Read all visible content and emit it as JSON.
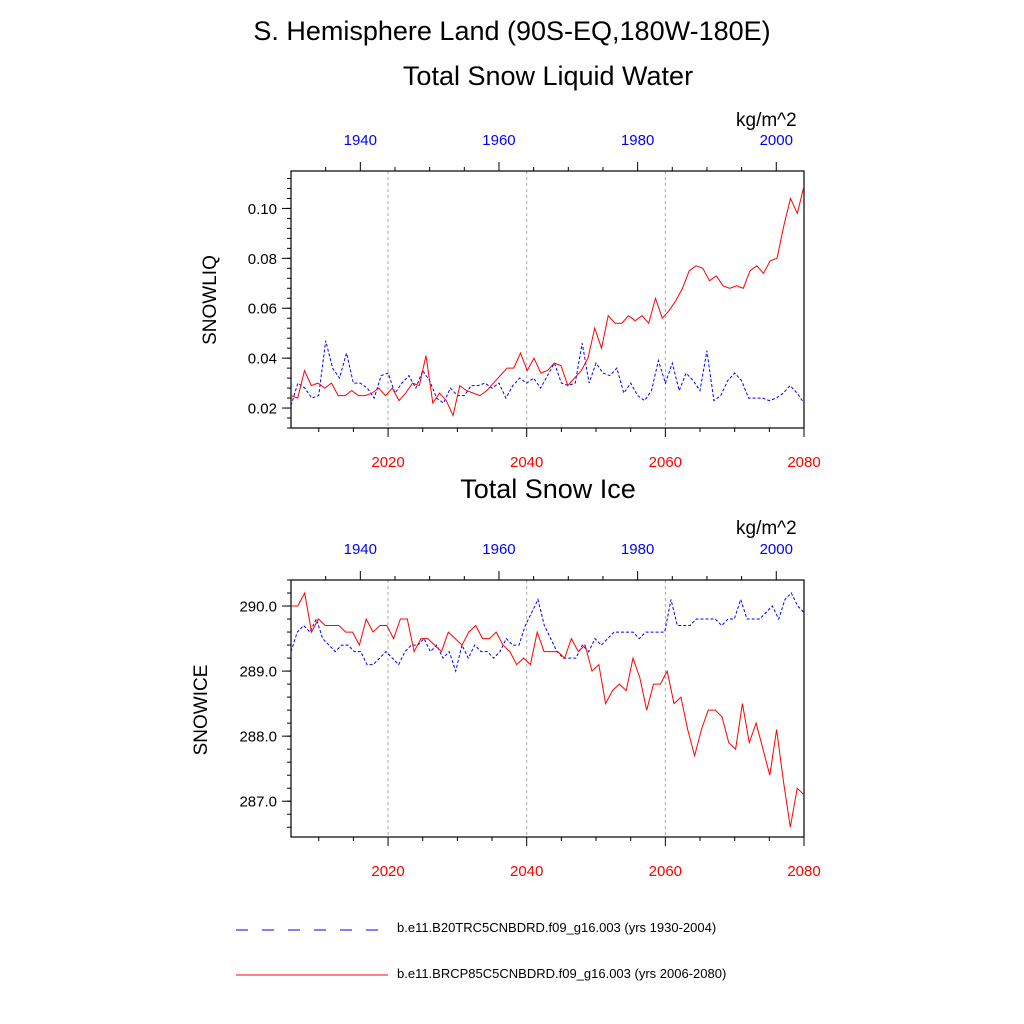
{
  "header": {
    "title": "S. Hemisphere Land (90S-EQ,180W-180E)"
  },
  "legend": [
    {
      "label": "b.e11.B20TRC5CNBDRD.f09_g16.003 (yrs 1930-2004)",
      "color": "#0000ff",
      "style": "dashed"
    },
    {
      "label": "b.e11.BRCP85C5CNBDRD.f09_g16.003 (yrs 2006-2080)",
      "color": "#ff0000",
      "style": "solid"
    }
  ],
  "chart_data": [
    {
      "type": "line",
      "title": "Total Snow Liquid Water",
      "units": "kg/m^2",
      "ylabel": "SNOWLIQ",
      "ylim": [
        0.012,
        0.115
      ],
      "yticks": [
        0.02,
        0.04,
        0.06,
        0.08,
        0.1
      ],
      "ytick_labels": [
        "0.02",
        "0.04",
        "0.06",
        "0.08",
        "0.10"
      ],
      "xlim": [
        2006,
        2080
      ],
      "x_bottom_ticks": [
        "2020",
        "2040",
        "2060",
        "2080"
      ],
      "x_top_ticks": [
        "1940",
        "1960",
        "1980",
        "2000"
      ],
      "x_top_offset": -76,
      "series": [
        {
          "name": "b.e11.B20TRC5CNBDRD.f09_g16.003 (yrs 1930-2004)",
          "color": "#0000ff",
          "x_start": 2006,
          "values": [
            0.021,
            0.03,
            0.028,
            0.024,
            0.025,
            0.047,
            0.036,
            0.032,
            0.042,
            0.03,
            0.03,
            0.028,
            0.024,
            0.033,
            0.034,
            0.026,
            0.03,
            0.033,
            0.028,
            0.035,
            0.031,
            0.024,
            0.022,
            0.028,
            0.025,
            0.025,
            0.029,
            0.029,
            0.03,
            0.028,
            0.03,
            0.024,
            0.029,
            0.032,
            0.03,
            0.032,
            0.028,
            0.033,
            0.038,
            0.03,
            0.029,
            0.03,
            0.046,
            0.03,
            0.038,
            0.034,
            0.033,
            0.036,
            0.026,
            0.03,
            0.025,
            0.023,
            0.027,
            0.039,
            0.03,
            0.038,
            0.027,
            0.034,
            0.031,
            0.027,
            0.043,
            0.023,
            0.025,
            0.031,
            0.034,
            0.031,
            0.024,
            0.024,
            0.024,
            0.023,
            0.024,
            0.026,
            0.029,
            0.026,
            0.022
          ]
        },
        {
          "name": "b.e11.BRCP85C5CNBDRD.f09_g16.003 (yrs 2006-2080)",
          "color": "#ff0000",
          "x_start": 2006,
          "values": [
            0.025,
            0.024,
            0.035,
            0.029,
            0.03,
            0.028,
            0.03,
            0.025,
            0.025,
            0.027,
            0.025,
            0.025,
            0.026,
            0.028,
            0.025,
            0.028,
            0.023,
            0.026,
            0.03,
            0.029,
            0.041,
            0.022,
            0.026,
            0.023,
            0.017,
            0.029,
            0.027,
            0.026,
            0.025,
            0.027,
            0.03,
            0.033,
            0.036,
            0.036,
            0.042,
            0.035,
            0.04,
            0.034,
            0.035,
            0.038,
            0.037,
            0.029,
            0.032,
            0.035,
            0.04,
            0.052,
            0.044,
            0.057,
            0.054,
            0.054,
            0.057,
            0.055,
            0.057,
            0.054,
            0.064,
            0.056,
            0.059,
            0.063,
            0.068,
            0.075,
            0.077,
            0.076,
            0.071,
            0.073,
            0.069,
            0.068,
            0.069,
            0.068,
            0.075,
            0.077,
            0.074,
            0.079,
            0.08,
            0.093,
            0.104,
            0.098,
            0.109
          ]
        }
      ]
    },
    {
      "type": "line",
      "title": "Total Snow Ice",
      "units": "kg/m^2",
      "ylabel": "SNOWICE",
      "ylim": [
        286.45,
        290.4
      ],
      "yticks": [
        287.0,
        288.0,
        289.0,
        290.0
      ],
      "ytick_labels": [
        "287.0",
        "288.0",
        "289.0",
        "290.0"
      ],
      "xlim": [
        2006,
        2080
      ],
      "x_bottom_ticks": [
        "2020",
        "2040",
        "2060",
        "2080"
      ],
      "x_top_ticks": [
        "1940",
        "1960",
        "1980",
        "2000"
      ],
      "x_top_offset": -76,
      "series": [
        {
          "name": "b.e11.B20TRC5CNBDRD.f09_g16.003 (yrs 1930-2004)",
          "color": "#0000ff",
          "x_start": 2006,
          "values": [
            289.3,
            289.6,
            289.7,
            289.6,
            289.8,
            289.5,
            289.4,
            289.3,
            289.4,
            289.4,
            289.3,
            289.3,
            289.1,
            289.1,
            289.2,
            289.3,
            289.2,
            289.1,
            289.3,
            289.4,
            289.4,
            289.5,
            289.3,
            289.4,
            289.2,
            289.3,
            289.0,
            289.4,
            289.2,
            289.4,
            289.3,
            289.3,
            289.2,
            289.3,
            289.5,
            289.4,
            289.4,
            289.7,
            289.9,
            290.1,
            289.7,
            289.5,
            289.3,
            289.2,
            289.2,
            289.2,
            289.4,
            289.3,
            289.5,
            289.4,
            289.5,
            289.6,
            289.6,
            289.6,
            289.6,
            289.5,
            289.6,
            289.6,
            289.6,
            289.6,
            290.1,
            289.7,
            289.7,
            289.7,
            289.8,
            289.8,
            289.8,
            289.8,
            289.7,
            289.8,
            289.8,
            290.1,
            289.8,
            289.8,
            289.8,
            289.9,
            290.0,
            289.8,
            290.1,
            290.2,
            290.0,
            289.9
          ]
        },
        {
          "name": "b.e11.BRCP85C5CNBDRD.f09_g16.003 (yrs 2006-2080)",
          "color": "#ff0000",
          "x_start": 2006,
          "values": [
            290.0,
            290.0,
            290.2,
            289.6,
            289.8,
            289.7,
            289.7,
            289.7,
            289.6,
            289.6,
            289.4,
            289.8,
            289.6,
            289.7,
            289.7,
            289.5,
            289.8,
            289.8,
            289.3,
            289.5,
            289.5,
            289.4,
            289.3,
            289.6,
            289.5,
            289.4,
            289.6,
            289.7,
            289.5,
            289.5,
            289.6,
            289.4,
            289.3,
            289.1,
            289.2,
            289.1,
            289.6,
            289.3,
            289.3,
            289.3,
            289.2,
            289.5,
            289.3,
            289.4,
            289.0,
            289.1,
            288.5,
            288.7,
            288.8,
            288.7,
            289.2,
            288.9,
            288.4,
            288.8,
            288.8,
            289.0,
            288.5,
            288.6,
            288.1,
            287.7,
            288.1,
            288.4,
            288.4,
            288.3,
            287.9,
            287.8,
            288.5,
            287.9,
            288.2,
            287.8,
            287.4,
            288.1,
            287.3,
            286.6,
            287.2,
            287.1
          ]
        }
      ]
    }
  ]
}
